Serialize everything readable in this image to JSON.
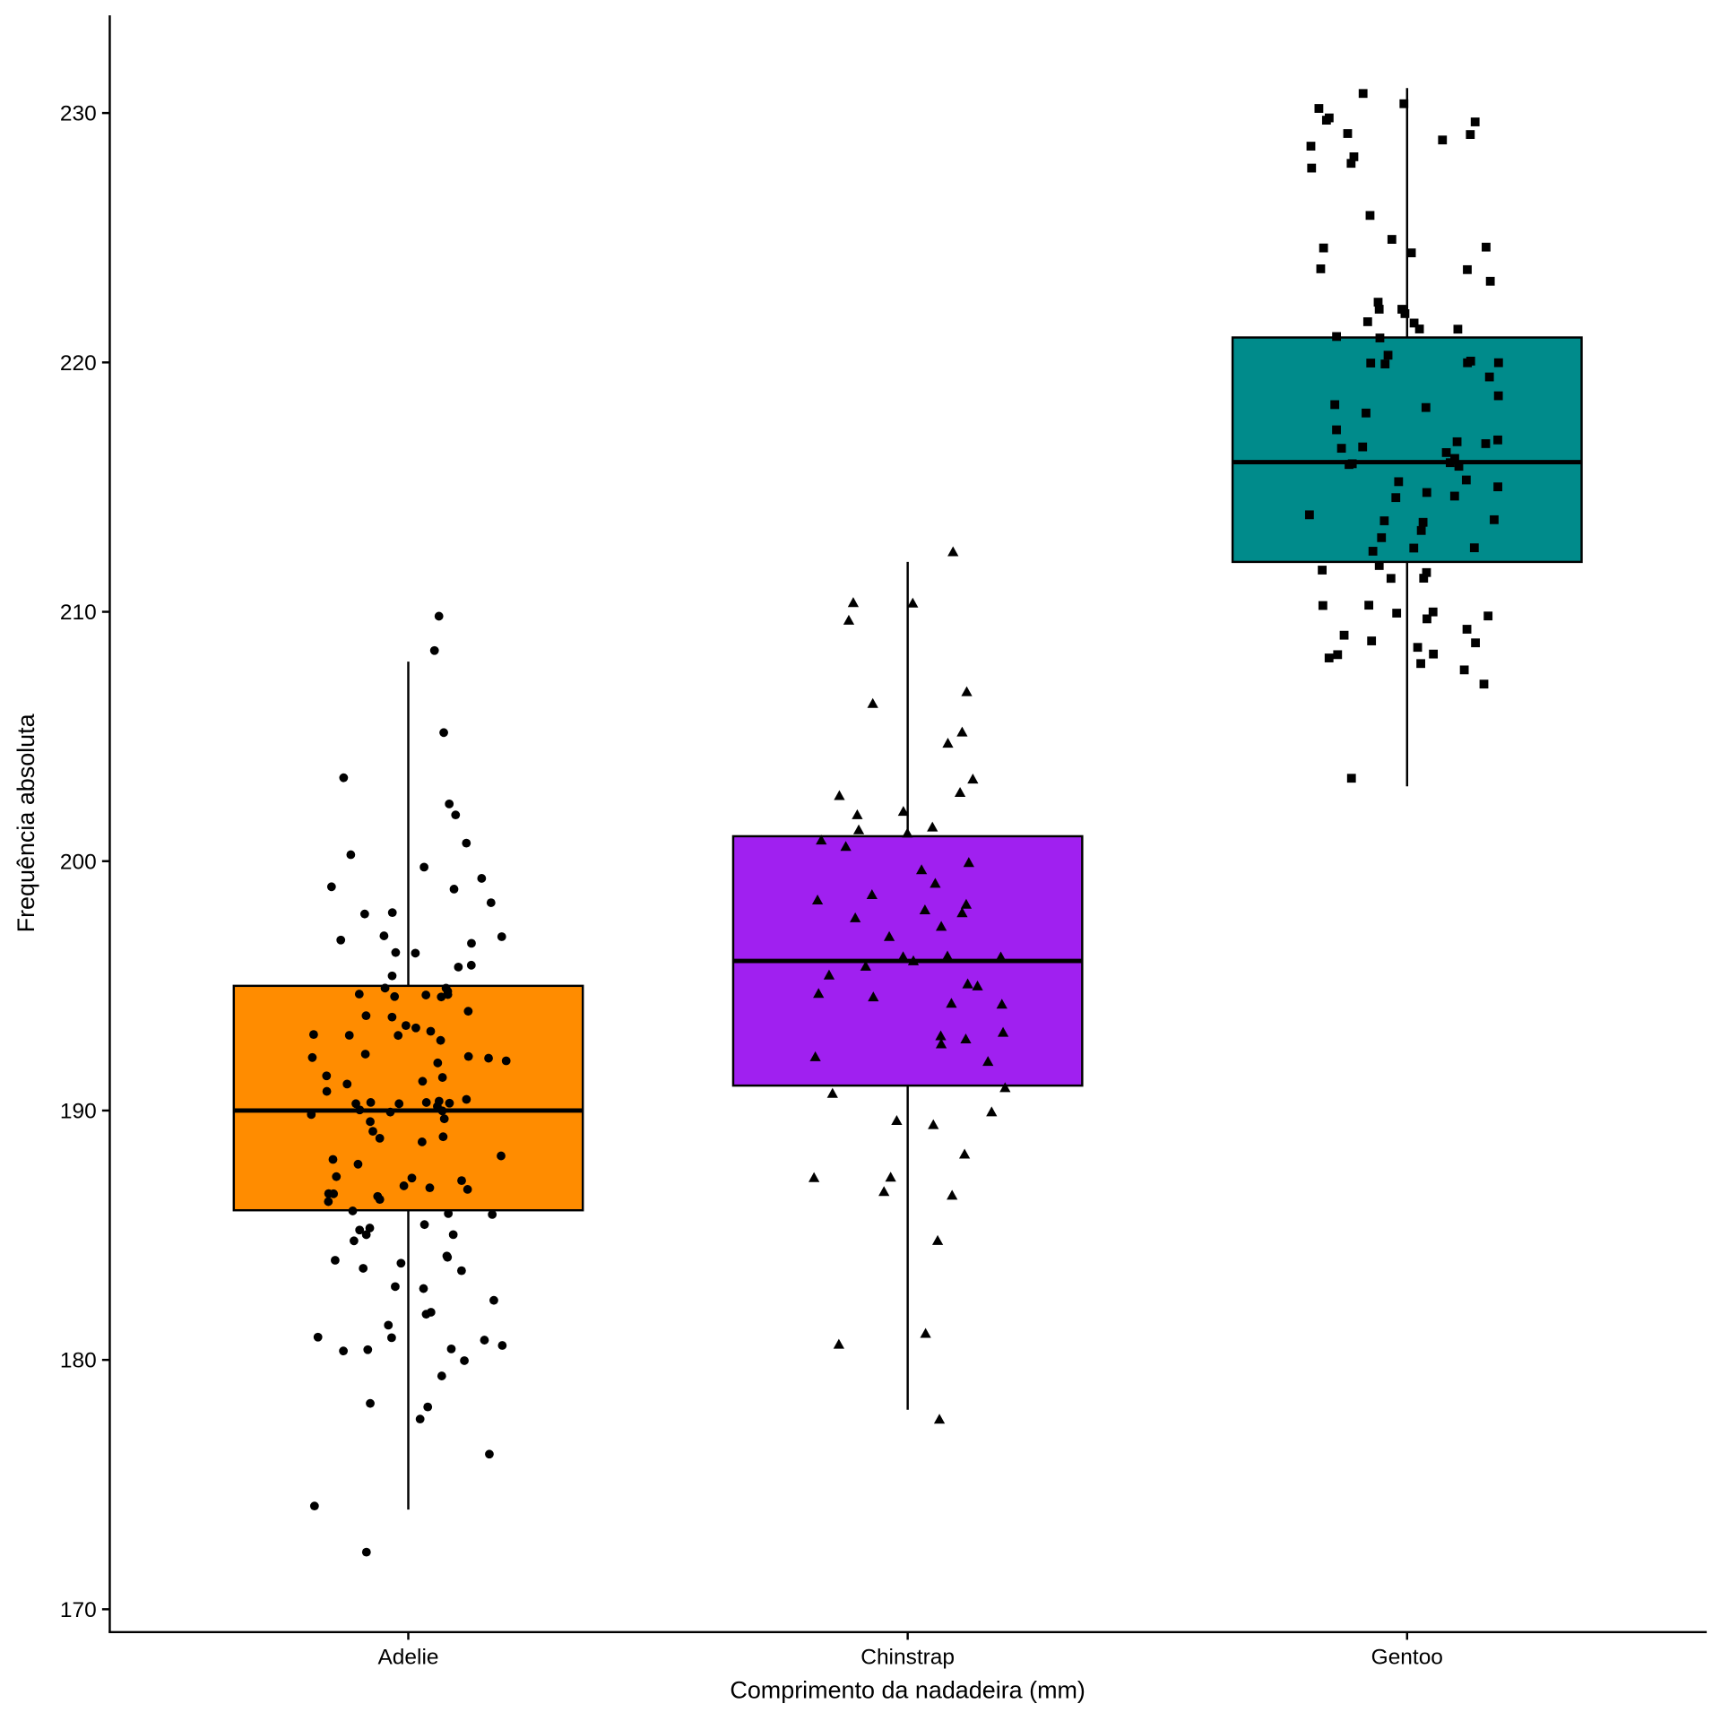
{
  "chart_data": {
    "type": "box",
    "title": "",
    "xlabel": "Comprimento da nadadeira (mm)",
    "ylabel": "Frequência absoluta",
    "ylim": [
      168,
      234
    ],
    "yticks": [
      170,
      180,
      190,
      200,
      210,
      220,
      230
    ],
    "grid": false,
    "categories": [
      "Adelie",
      "Chinstrap",
      "Gentoo"
    ],
    "colors": {
      "Adelie": "#FF8C00",
      "Chinstrap": "#A020F0",
      "Gentoo": "#008B8B"
    },
    "point_shapes": {
      "Adelie": "circle",
      "Chinstrap": "triangle",
      "Gentoo": "square"
    },
    "boxes": [
      {
        "name": "Adelie",
        "whisker_low": 174,
        "q1": 186,
        "median": 190,
        "q3": 195,
        "whisker_high": 208
      },
      {
        "name": "Chinstrap",
        "whisker_low": 178,
        "q1": 191,
        "median": 196,
        "q3": 201,
        "whisker_high": 212
      },
      {
        "name": "Gentoo",
        "whisker_low": 203,
        "q1": 212,
        "median": 216,
        "q3": 221,
        "whisker_high": 231
      }
    ],
    "points": {
      "Adelie": [
        210,
        208,
        205,
        203,
        202,
        202,
        201,
        200,
        200,
        199,
        199,
        199,
        198,
        198,
        198,
        197,
        197,
        197,
        197,
        196,
        196,
        196,
        196,
        195,
        195,
        195,
        195,
        195,
        195,
        195,
        195,
        195,
        194,
        194,
        194,
        193,
        193,
        193,
        193,
        193,
        193,
        193,
        192,
        192,
        192,
        192,
        192,
        192,
        191,
        191,
        191,
        191,
        191,
        190,
        190,
        190,
        190,
        190,
        190,
        190,
        190,
        190,
        190,
        190,
        190,
        190,
        190,
        189,
        189,
        189,
        189,
        188,
        188,
        188,
        187,
        187,
        187,
        187,
        187,
        187,
        187,
        187,
        187,
        186,
        186,
        186,
        186,
        186,
        185,
        185,
        185,
        185,
        185,
        185,
        184,
        184,
        184,
        184,
        184,
        184,
        183,
        183,
        182,
        182,
        182,
        181,
        181,
        181,
        181,
        181,
        180,
        180,
        180,
        180,
        179,
        178,
        178,
        178,
        176,
        174,
        172
      ],
      "Chinstrap": [
        212,
        210,
        210,
        210,
        207,
        206,
        205,
        205,
        203,
        203,
        203,
        202,
        202,
        201,
        201,
        201,
        201,
        201,
        200,
        200,
        199,
        199,
        198,
        198,
        198,
        198,
        198,
        197,
        197,
        196,
        196,
        196,
        196,
        196,
        195,
        195,
        195,
        195,
        195,
        194,
        194,
        193,
        193,
        193,
        193,
        192,
        192,
        191,
        191,
        190,
        190,
        189,
        188,
        187,
        187,
        187,
        187,
        185,
        181,
        181,
        178
      ],
      "Gentoo": [
        231,
        230,
        230,
        230,
        230,
        230,
        229,
        229,
        229,
        229,
        228,
        228,
        228,
        226,
        225,
        225,
        225,
        224,
        224,
        224,
        223,
        222,
        222,
        222,
        222,
        222,
        222,
        221,
        221,
        221,
        221,
        220,
        220,
        220,
        220,
        220,
        220,
        219,
        219,
        218,
        218,
        218,
        217,
        217,
        217,
        217,
        217,
        217,
        216,
        216,
        216,
        216,
        216,
        216,
        215,
        215,
        215,
        215,
        215,
        215,
        214,
        214,
        214,
        214,
        213,
        213,
        213,
        213,
        212,
        212,
        212,
        212,
        211,
        211,
        210,
        210,
        210,
        210,
        210,
        210,
        209,
        209,
        209,
        209,
        209,
        208,
        208,
        208,
        208,
        208,
        207,
        203
      ]
    }
  }
}
